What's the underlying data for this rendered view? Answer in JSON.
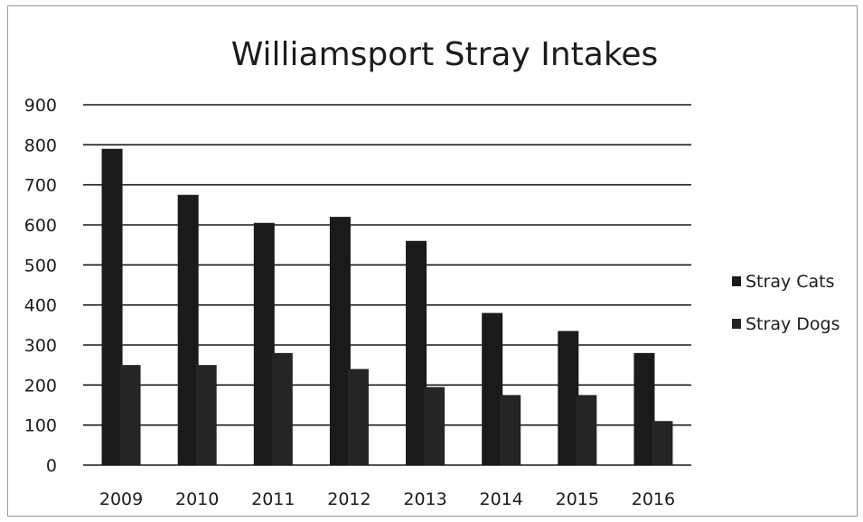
{
  "chart_data": {
    "type": "bar",
    "title": "Williamsport Stray Intakes",
    "xlabel": "",
    "ylabel": "",
    "categories": [
      "2009",
      "2010",
      "2011",
      "2012",
      "2013",
      "2014",
      "2015",
      "2016"
    ],
    "series": [
      {
        "name": "Stray Cats",
        "values": [
          790,
          675,
          605,
          620,
          560,
          380,
          335,
          280
        ]
      },
      {
        "name": "Stray Dogs",
        "values": [
          250,
          250,
          280,
          240,
          195,
          175,
          175,
          110
        ]
      }
    ],
    "ylim": [
      0,
      900
    ],
    "yticks": [
      "0",
      "100",
      "200",
      "300",
      "400",
      "500",
      "600",
      "700",
      "800",
      "900"
    ],
    "grid": true,
    "legend_position": "right",
    "colors": {
      "bars": "#1e1e1e",
      "grid": "#1a1a1a",
      "text": "#1c1c1c",
      "background": "#ffffff"
    }
  }
}
